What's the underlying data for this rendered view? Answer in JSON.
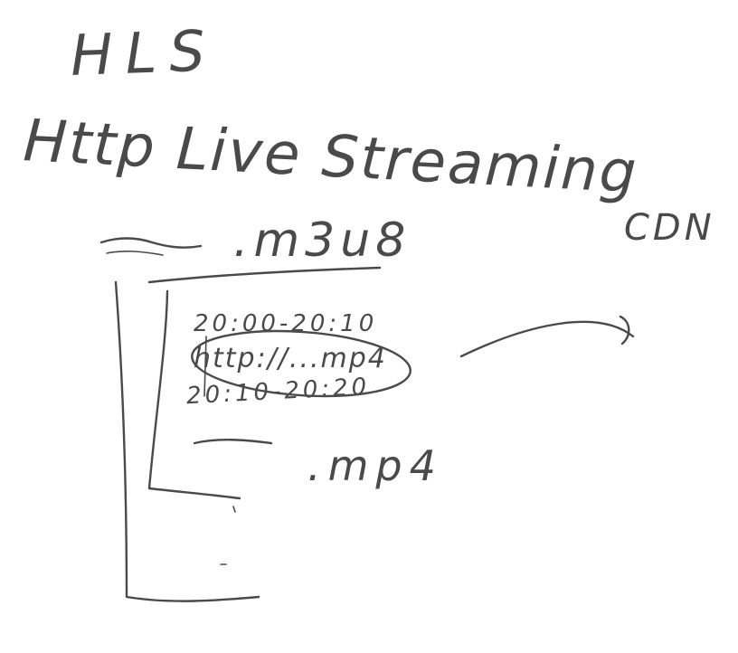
{
  "whiteboard": {
    "background": "#ffffff",
    "ink_color": "#4a4a4a",
    "title": "HLS",
    "subtitle": "Http Live Streaming",
    "cdn_note": "CDN",
    "playlist": {
      "file": ".m3u8",
      "segment_1_range": "20:00-20:10",
      "segment_1_url": "http://...mp4",
      "segment_2_range": "20:10-20:20",
      "segment_3_file": ".mp4"
    }
  }
}
